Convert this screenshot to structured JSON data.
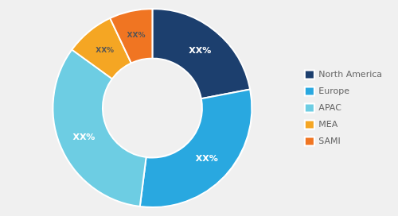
{
  "chart_data": {
    "type": "doughnut",
    "categories": [
      "North America",
      "Europe",
      "APAC",
      "MEA",
      "SAMI"
    ],
    "values": [
      22,
      30,
      33,
      8,
      7
    ],
    "value_labels": [
      "XX%",
      "XX%",
      "XX%",
      "XX%",
      "XX%"
    ],
    "data_labels": true,
    "colors": [
      "#1c3f6e",
      "#29a8e0",
      "#6dcde3",
      "#f5a623",
      "#f07522"
    ],
    "legend": "right"
  }
}
